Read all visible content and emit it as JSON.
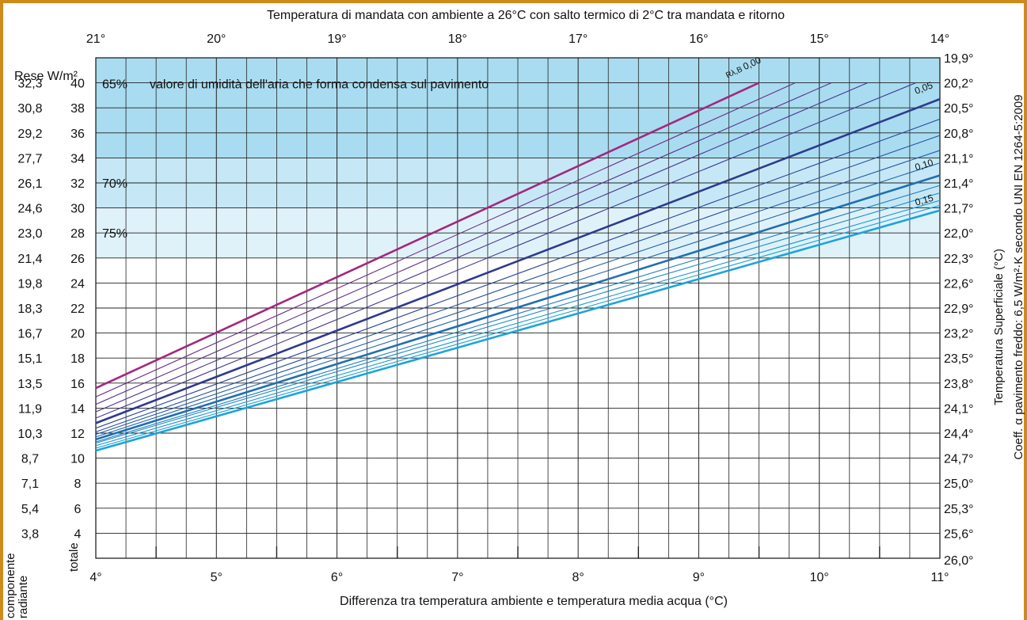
{
  "chart_data": {
    "type": "line",
    "title": "Temperatura di mandata con ambiente a 26°C con salto termico di 2°C tra mandata e ritorno",
    "xlabel": "Differenza tra temperatura ambiente e temperatura media acqua (°C)",
    "x_ticks": [
      "4°",
      "5°",
      "6°",
      "7°",
      "8°",
      "9°",
      "10°",
      "11°"
    ],
    "xlim": [
      4,
      11
    ],
    "top_axis_ticks": [
      "21°",
      "20°",
      "19°",
      "18°",
      "17°",
      "16°",
      "15°",
      "14°"
    ],
    "left_header": "Rese W/m²",
    "left_axis_label_radiant": "componente radiante",
    "left_axis_label_total": "totale",
    "ylim": [
      2,
      42
    ],
    "y_ticks_total": [
      "4",
      "6",
      "8",
      "10",
      "12",
      "14",
      "16",
      "18",
      "20",
      "22",
      "24",
      "26",
      "28",
      "30",
      "32",
      "34",
      "36",
      "38",
      "40"
    ],
    "y_ticks_radiant": [
      "3,8",
      "5,4",
      "7,1",
      "8,7",
      "10,3",
      "11,9",
      "13,5",
      "15,1",
      "16,7",
      "18,3",
      "19,8",
      "21,4",
      "23,0",
      "24,6",
      "26,1",
      "27,7",
      "29,2",
      "30,8",
      "32,3"
    ],
    "right_ticks": [
      "26,0°",
      "25,6°",
      "25,3°",
      "25,0°",
      "24,7°",
      "24,4°",
      "24,1°",
      "23,8°",
      "23,5°",
      "23,2°",
      "22,9°",
      "22,6°",
      "22,3°",
      "22,0°",
      "21,7°",
      "21,4°",
      "21,1°",
      "20,8°",
      "20,5°",
      "20,2°",
      "19,9°"
    ],
    "right_label_1": "Temperatura Superficiale (°C)",
    "right_label_2": "Coeff. α pavimento freddo: 6,5 W/m²·K secondo UNI EN 1264-5:2009",
    "humidity_zones": [
      {
        "label": "65%",
        "from": 34,
        "to": 42
      },
      {
        "label": "70%",
        "from": 30,
        "to": 34
      },
      {
        "label": "75%",
        "from": 26,
        "to": 30
      }
    ],
    "condensation_note": "valore di umidità dell'aria che forma condensa sul pavimento",
    "series_label_prefix": "Rλ,B",
    "series": [
      {
        "name": "0,00",
        "r": 0.0,
        "values": [
          [
            4,
            15.6
          ],
          [
            9.5,
            40
          ]
        ],
        "color": "#a3287e",
        "bold": true
      },
      {
        "name": "",
        "r": 0.01,
        "values": [
          [
            4,
            14.9
          ],
          [
            9.8,
            40
          ]
        ],
        "color": "#6b2d85",
        "bold": false
      },
      {
        "name": "",
        "r": 0.02,
        "values": [
          [
            4,
            14.3
          ],
          [
            10.1,
            40
          ]
        ],
        "color": "#5a2f8c",
        "bold": false
      },
      {
        "name": "",
        "r": 0.03,
        "values": [
          [
            4,
            13.7
          ],
          [
            10.4,
            40
          ]
        ],
        "color": "#4a3391",
        "bold": false
      },
      {
        "name": "",
        "r": 0.04,
        "values": [
          [
            4,
            13.2
          ],
          [
            10.8,
            40
          ]
        ],
        "color": "#3d3894",
        "bold": false
      },
      {
        "name": "0,05",
        "r": 0.05,
        "values": [
          [
            4,
            12.8
          ],
          [
            11,
            38.7
          ]
        ],
        "color": "#2e3a8e",
        "bold": true
      },
      {
        "name": "",
        "r": 0.06,
        "values": [
          [
            4,
            12.4
          ],
          [
            11,
            37.1
          ]
        ],
        "color": "#2a4596",
        "bold": false
      },
      {
        "name": "",
        "r": 0.07,
        "values": [
          [
            4,
            12.1
          ],
          [
            11,
            35.8
          ]
        ],
        "color": "#27519e",
        "bold": false
      },
      {
        "name": "",
        "r": 0.08,
        "values": [
          [
            4,
            11.9
          ],
          [
            11,
            34.6
          ]
        ],
        "color": "#245ca6",
        "bold": false
      },
      {
        "name": "",
        "r": 0.09,
        "values": [
          [
            4,
            11.7
          ],
          [
            11,
            33.6
          ]
        ],
        "color": "#2167ad",
        "bold": false
      },
      {
        "name": "0,10",
        "r": 0.1,
        "values": [
          [
            4,
            11.5
          ],
          [
            11,
            32.6
          ]
        ],
        "color": "#1f6fb3",
        "bold": true
      },
      {
        "name": "",
        "r": 0.11,
        "values": [
          [
            4,
            11.3
          ],
          [
            11,
            31.8
          ]
        ],
        "color": "#1f7dbd",
        "bold": false
      },
      {
        "name": "",
        "r": 0.12,
        "values": [
          [
            4,
            11.2
          ],
          [
            11,
            31.2
          ]
        ],
        "color": "#1f8ac6",
        "bold": false
      },
      {
        "name": "",
        "r": 0.13,
        "values": [
          [
            4,
            11.0
          ],
          [
            11,
            30.6
          ]
        ],
        "color": "#1f96cf",
        "bold": false
      },
      {
        "name": "",
        "r": 0.14,
        "values": [
          [
            4,
            10.8
          ],
          [
            11,
            30.2
          ]
        ],
        "color": "#1fa0d6",
        "bold": false
      },
      {
        "name": "0,15",
        "r": 0.15,
        "values": [
          [
            4,
            10.6
          ],
          [
            11,
            29.8
          ]
        ],
        "color": "#1ea3da",
        "bold": true
      }
    ],
    "grid": true
  }
}
